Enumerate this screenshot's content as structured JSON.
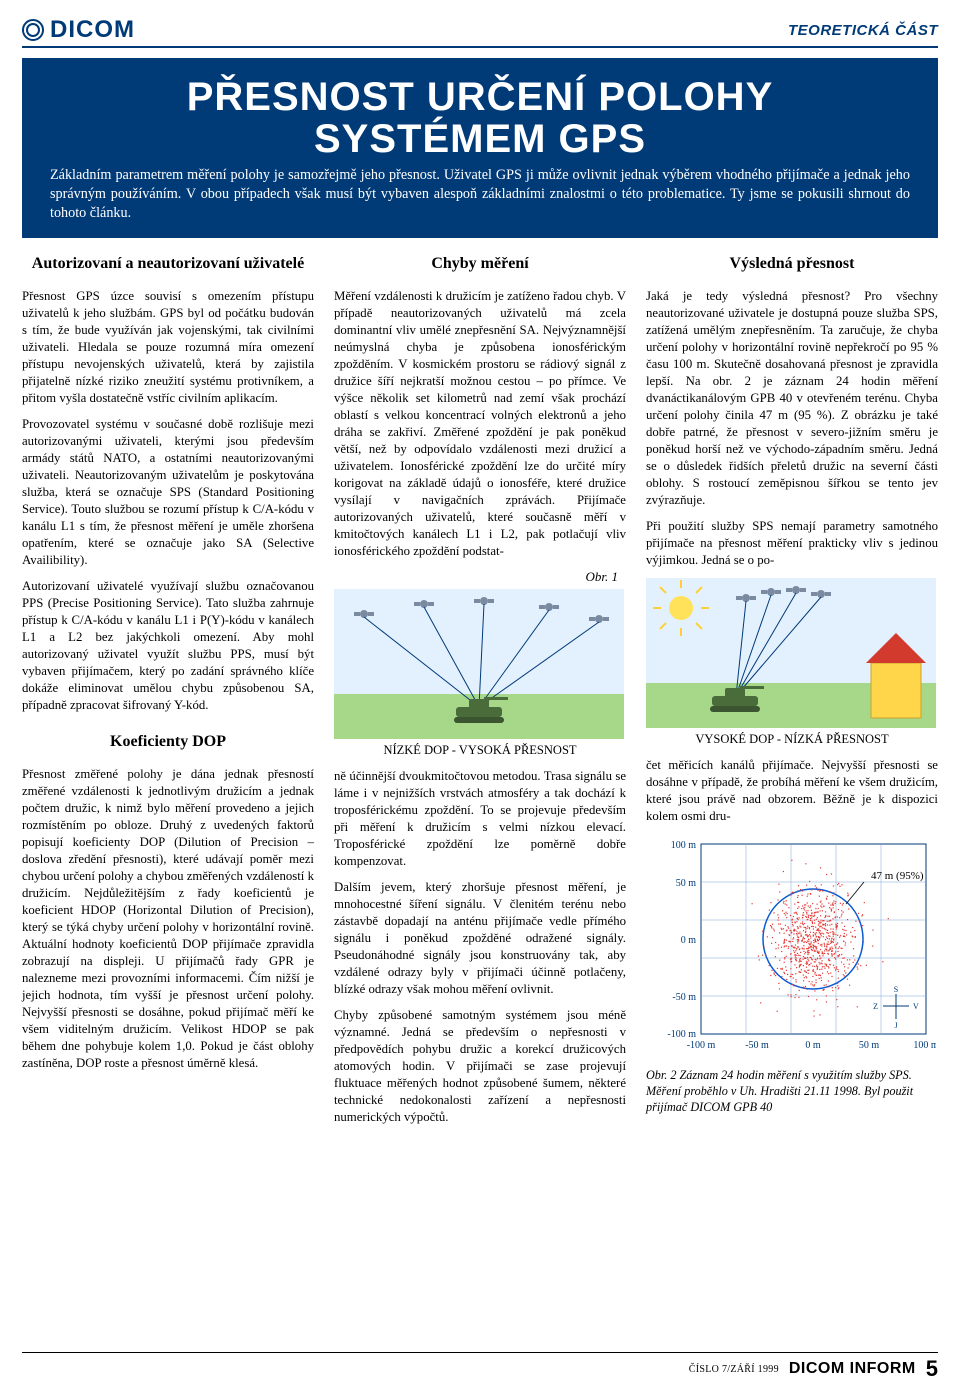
{
  "header": {
    "brand": "DICOM",
    "section": "TEORETICKÁ ČÁST"
  },
  "banner": {
    "title_l1": "PŘESNOST URČENÍ POLOHY",
    "title_l2": "SYSTÉMEM GPS",
    "intro": "Základním parametrem měření polohy je samozřejmě jeho přesnost. Uživatel GPS ji může ovlivnit jednak výběrem vhodného přijímače a jednak jeho správným používáním. V obou případech však musí být vybaven alespoň základními znalostmi o této problematice. Ty jsme se pokusili shrnout do tohoto článku."
  },
  "cols": {
    "left": {
      "h1": "Autorizovaní a neautorizovaní uživatelé",
      "h2": "Koeficienty DOP",
      "p1": "Přesnost GPS úzce souvisí s omezením přístupu uživatelů k jeho službám. GPS byl od počátku budován s tím, že bude využíván jak vojenskými, tak civilními uživateli. Hledala se pouze rozumná míra omezení přístupu nevojenských uživatelů, která by zajistila přijatelně nízké riziko zneužití systému protivníkem, a přitom vyšla dostatečně vstříc civilním aplikacím.",
      "p2": "Provozovatel systému v současné době rozlišuje mezi autorizovanými uživateli, kterými jsou především armády států NATO, a ostatními neautorizovanými uživateli. Neautorizovaným uživatelům je poskytována služba, která se označuje SPS (Standard Positioning Service). Touto službou se rozumí přístup k C/A-kódu v kanálu L1 s tím, že přesnost měření je uměle zhoršena opatřením, které se označuje jako SA (Selective Availibility).",
      "p3": "Autorizovaní uživatelé využívají službu označovanou PPS (Precise Positioning Service). Tato služba zahrnuje přístup k C/A-kódu v kanálu L1 i P(Y)-kódu v kanálech L1 a L2 bez jakýchkoli omezení. Aby mohl autorizovaný uživatel využít službu PPS, musí být vybaven přijímačem, který po zadání správného klíče dokáže eliminovat umělou chybu způsobenou SA, případně zpracovat šifrovaný Y-kód.",
      "p4": "Přesnost změřené polohy je dána jednak přesností změřené vzdálenosti k jednotlivým družicím a jednak počtem družic, k nimž bylo měření provedeno a jejich rozmístěním po obloze. Druhý z uvedených faktorů popisují koeficienty DOP (Dilution of Precision – doslova zředění přesnosti), které udávají poměr mezi chybou určení polohy a chybou změřených vzdáleností k družicím. Nejdůležitějším z řady koeficientů je koeficient HDOP (Horizontal Dilution of Precision), který se týká chyby určení polohy v horizontální rovině. Aktuální hodnoty koeficientů DOP přijímače zpravidla zobrazují na displeji. U přijímačů řady GPR je nalezneme mezi provozními informacemi. Čím nižší je jejich hodnota, tím vyšší je přesnost určení polohy. Nejvyšší přesnosti se dosáhne, pokud přijímač měří ke všem viditelným družicím. Velikost HDOP se pak během dne pohybuje kolem 1,0. Pokud je část oblohy zastíněna, DOP roste a přesnost úměrně klesá."
    },
    "mid": {
      "h": "Chyby měření",
      "p1": "Měření vzdálenosti k družicím je zatíženo řadou chyb. V případě neautorizovaných uživatelů má zcela dominantní vliv umělé znepřesnění SA. Nejvýznamnější neúmyslná chyba je způsobena ionosférickým zpožděním. V kosmickém prostoru se rádiový signál z družice šíří nejkratší možnou cestou – po přímce. Ve výšce několik set kilometrů nad zemí však prochází oblastí s velkou koncentrací volných elektronů a jeho dráha se zakřiví. Změřené zpoždění je pak poněkud větší, než by odpovídalo vzdálenosti mezi družicí a uživatelem. Ionosférické zpoždění lze do určité míry korigovat na základě údajů o ionosféře, které družice vysílají v navigačních zprávách. Přijímače autorizovaných uživatelů, které současně měří v kmitočtových kanálech L1 i L2, pak potlačují vliv ionosférického zpoždění podstat-",
      "p2": "ně účinnější dvoukmitočtovou metodou. Trasa signálu se láme i v nejnižších vrstvách atmosféry a tak dochází k troposférickému zpoždění. To se projevuje především při měření k družicím s velmi nízkou elevací. Troposférické zpoždění lze poměrně dobře kompenzovat.",
      "p3": "Dalším jevem, který zhoršuje přesnost měření, je mnohocestné šíření signálu. V členitém terénu nebo zástavbě dopadají na anténu přijímače vedle přímého signálu i poněkud zpožděné odražené signály. Pseudonáhodné signály jsou konstruovány tak, aby vzdálené odrazy byly v přijímači účinně potlačeny, blízké odrazy však mohou měření ovlivnit.",
      "p4": "Chyby způsobené samotným systémem jsou méně významné. Jedná se především o nepřesnosti v předpovědích pohybu družic a korekcí družicových atomových hodin. V přijímači se zase projevují fluktuace měřených hodnot způsobené šumem, některé technické nedokonalosti zařízení a nepřesnosti numerických výpočtů.",
      "fig_low": "NÍZKÉ DOP - VYSOKÁ PŘESNOST",
      "fig_label": "Obr. 1"
    },
    "right": {
      "h": "Výsledná přesnost",
      "p1": "Jaká je tedy výsledná přesnost? Pro všechny neautorizované uživatele je dostupná pouze služba SPS, zatížená umělým znepřesněním. Ta zaručuje, že chyba určení polohy v horizontální rovině nepřekročí po 95 % času 100 m. Skutečně dosahovaná přesnost je zpravidla lepší. Na obr. 2 je záznam 24 hodin měření dvanáctikanálovým GPB 40 v otevřeném terénu. Chyba určení polohy činila 47 m (95 %). Z obrázku je také dobře patrné, že přesnost v severo-jižním směru je poněkud horší než ve východo-západním směru. Jedná se o důsledek řidších přeletů družic na severní části oblohy. S rostoucí zeměpisnou šířkou se tento jev zvýrazňuje.",
      "p2": "Při použití služby SPS nemají parametry samotného přijímače na přesnost měření prakticky vliv s jedinou výjimkou. Jedná se o po-",
      "p3": "čet měřicích kanálů přijímače. Nejvyšší přesnosti se dosáhne v případě, že probíhá měření ke všem družicím, které jsou právě nad obzorem. Běžně je k dispozici kolem osmi dru-",
      "fig_high": "VYSOKÉ DOP - NÍZKÁ PŘESNOST",
      "fig2_caption": "Obr. 2  Záznam 24 hodin měření s využitím služby SPS. Měření proběhlo v Uh. Hradišti 21.11 1998. Byl použit přijímač DICOM GPB 40"
    }
  },
  "fig1": {
    "sky_color": "#e3f1ff",
    "ground_color": "#a7d88a",
    "tank_color": "#4a6b3a",
    "sun_color": "#ffe15a",
    "house_body": "#ffd54a",
    "house_roof": "#d13a2d",
    "ray_color": "#003a77"
  },
  "fig2": {
    "axis_color": "#003a77",
    "pt_color": "#e53935",
    "circle_color": "#0b5bd3",
    "ticks_y": [
      "100 m",
      "50 m",
      "0 m",
      "-50 m",
      "-100 m"
    ],
    "ticks_x": [
      "-100 m",
      "-50 m",
      "0 m",
      "50 m",
      "100 m"
    ],
    "annot": "47 m (95%)"
  },
  "footer": {
    "issue": "ČÍSLO 7/ZÁŘÍ 1999",
    "magazine": "DICOM INFORM",
    "pagenum": "5"
  }
}
